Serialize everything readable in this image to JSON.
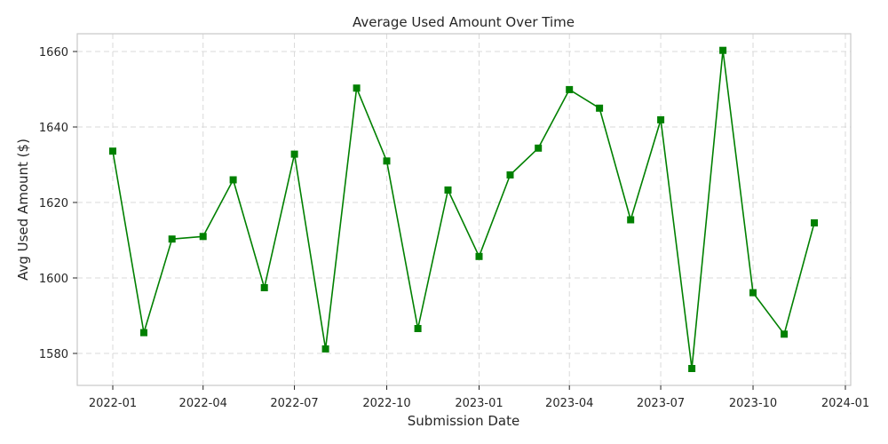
{
  "chart_data": {
    "type": "line",
    "title": "Average Used Amount Over Time",
    "xlabel": "Submission Date",
    "ylabel": "Avg Used Amount ($)",
    "x_ticks": [
      "2022-01",
      "2022-04",
      "2022-07",
      "2022-10",
      "2023-01",
      "2023-04",
      "2023-07",
      "2023-10",
      "2024-01"
    ],
    "y_ticks": [
      1580,
      1600,
      1620,
      1640,
      1660
    ],
    "ylim": [
      1572,
      1665
    ],
    "grid": true,
    "color": "#008000",
    "marker": "square",
    "x": [
      "2022-01-01",
      "2022-02-01",
      "2022-03-01",
      "2022-04-01",
      "2022-05-01",
      "2022-06-01",
      "2022-07-01",
      "2022-08-01",
      "2022-09-01",
      "2022-10-01",
      "2022-11-01",
      "2022-12-01",
      "2023-01-01",
      "2023-02-01",
      "2023-03-01",
      "2023-04-01",
      "2023-05-01",
      "2023-06-01",
      "2023-07-01",
      "2023-08-01",
      "2023-09-01",
      "2023-10-01",
      "2023-11-01",
      "2023-12-01"
    ],
    "values": [
      1633.6,
      1585.5,
      1610.3,
      1611.0,
      1626.0,
      1597.4,
      1632.8,
      1581.2,
      1650.3,
      1631.0,
      1586.6,
      1623.3,
      1605.7,
      1627.3,
      1634.4,
      1649.9,
      1645.0,
      1615.4,
      1641.9,
      1576.0,
      1660.3,
      1596.1,
      1585.1,
      1614.6
    ]
  }
}
